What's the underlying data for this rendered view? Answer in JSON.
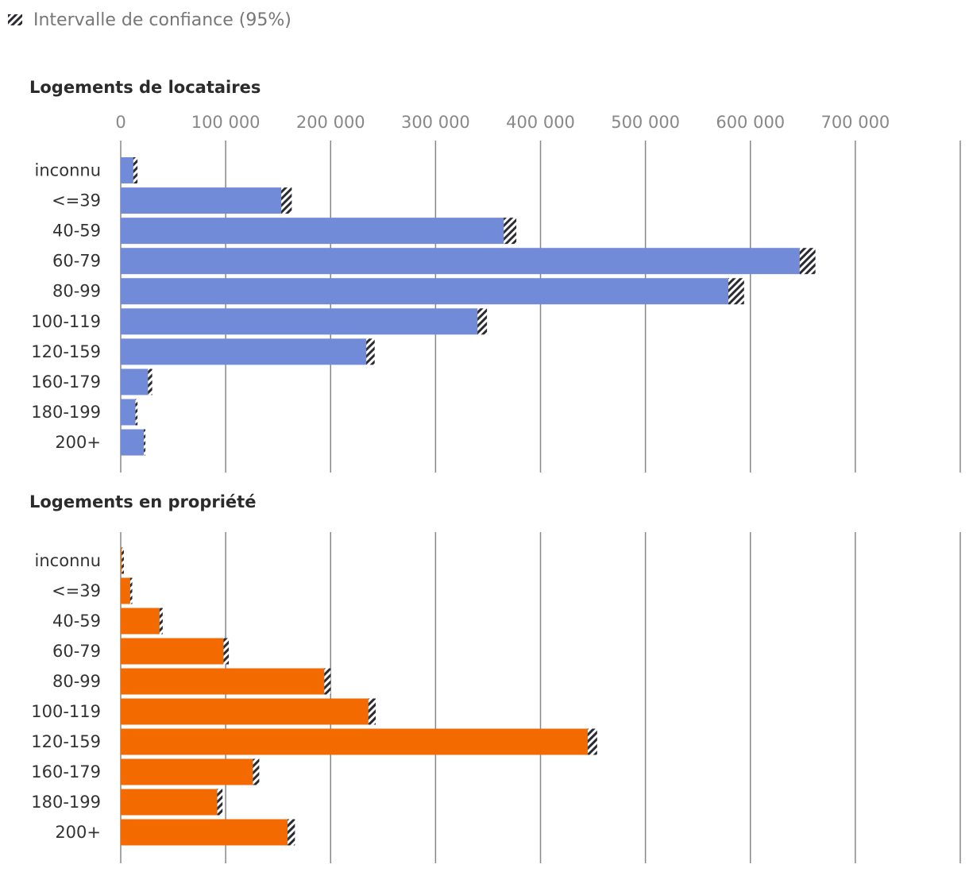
{
  "legend": {
    "label": "Intervalle de confiance (95%)",
    "icon": "hatched-swatch-icon"
  },
  "colors": {
    "renters": "#728bd9",
    "owners": "#f26a00",
    "ci_dark": "#2b2b33",
    "grid": "#888888"
  },
  "chart_data": {
    "type": "bar",
    "orientation": "horizontal",
    "xlim": [
      0,
      800000
    ],
    "x_ticks": [
      0,
      100000,
      200000,
      300000,
      400000,
      500000,
      600000,
      700000
    ],
    "x_tick_labels": [
      "0",
      "100 000",
      "200 000",
      "300 000",
      "400 000",
      "500 000",
      "600 000",
      "700 000"
    ],
    "categories": [
      "inconnu",
      "<=39",
      "40-59",
      "60-79",
      "80-99",
      "100-119",
      "120-159",
      "160-179",
      "180-199",
      "200+"
    ],
    "legend": [
      "Intervalle de confiance (95%)"
    ],
    "panels": [
      {
        "title": "Logements de locataires",
        "color_key": "renters",
        "values": [
          13000,
          155000,
          367000,
          650000,
          582000,
          342000,
          236000,
          27000,
          14000,
          22000
        ],
        "ci": [
          [
            12000,
            16000
          ],
          [
            153000,
            163000
          ],
          [
            365000,
            377000
          ],
          [
            647000,
            662000
          ],
          [
            579000,
            594000
          ],
          [
            340000,
            349000
          ],
          [
            234000,
            242000
          ],
          [
            26000,
            30000
          ],
          [
            14000,
            16000
          ],
          [
            22000,
            23500
          ]
        ]
      },
      {
        "title": "Logements en propriété",
        "color_key": "owners",
        "values": [
          1500,
          9500,
          38000,
          99000,
          195000,
          237000,
          446000,
          127000,
          93000,
          160000
        ],
        "ci": [
          [
            1000,
            3000
          ],
          [
            9000,
            11000
          ],
          [
            37000,
            40000
          ],
          [
            98000,
            103000
          ],
          [
            194000,
            200000
          ],
          [
            236000,
            243000
          ],
          [
            445000,
            454000
          ],
          [
            126000,
            132000
          ],
          [
            92000,
            97000
          ],
          [
            159000,
            166000
          ]
        ]
      }
    ]
  }
}
